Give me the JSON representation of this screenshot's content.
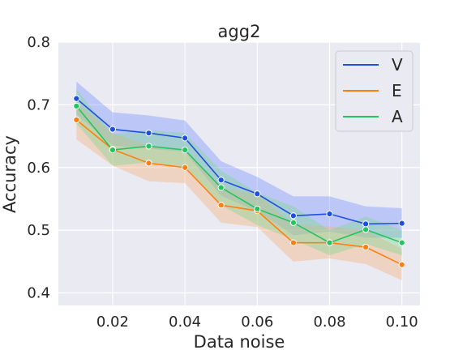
{
  "chart_data": {
    "type": "line",
    "title": "agg2",
    "xlabel": "Data noise",
    "ylabel": "Accuracy",
    "xlim": [
      0.005,
      0.105
    ],
    "ylim": [
      0.38,
      0.8
    ],
    "xticks": [
      0.02,
      0.04,
      0.06,
      0.08,
      0.1
    ],
    "xtick_labels": [
      "0.02",
      "0.04",
      "0.06",
      "0.08",
      "0.10"
    ],
    "yticks": [
      0.4,
      0.5,
      0.6,
      0.7,
      0.8
    ],
    "ytick_labels": [
      "0.4",
      "0.5",
      "0.6",
      "0.7",
      "0.8"
    ],
    "grid": true,
    "legend_position": "top-right",
    "x": [
      0.01,
      0.02,
      0.03,
      0.04,
      0.05,
      0.06,
      0.07,
      0.08,
      0.09,
      0.1
    ],
    "series": [
      {
        "name": "V",
        "color": "#1f4fe0",
        "band_color": "#7b93ff",
        "values": [
          0.71,
          0.661,
          0.655,
          0.647,
          0.58,
          0.558,
          0.523,
          0.526,
          0.51,
          0.511
        ],
        "ci_lower": [
          0.685,
          0.635,
          0.63,
          0.625,
          0.555,
          0.53,
          0.492,
          0.498,
          0.488,
          0.488
        ],
        "ci_upper": [
          0.737,
          0.688,
          0.683,
          0.675,
          0.61,
          0.585,
          0.554,
          0.554,
          0.538,
          0.535
        ]
      },
      {
        "name": "E",
        "color": "#ff7f0e",
        "band_color": "#f6b27a",
        "values": [
          0.676,
          0.629,
          0.607,
          0.6,
          0.54,
          0.531,
          0.48,
          0.48,
          0.473,
          0.445
        ],
        "ci_lower": [
          0.645,
          0.603,
          0.578,
          0.575,
          0.512,
          0.505,
          0.45,
          0.455,
          0.446,
          0.42
        ],
        "ci_upper": [
          0.705,
          0.655,
          0.635,
          0.627,
          0.568,
          0.557,
          0.51,
          0.506,
          0.5,
          0.47
        ]
      },
      {
        "name": "A",
        "color": "#22c55e",
        "band_color": "#7fd88f",
        "values": [
          0.698,
          0.628,
          0.634,
          0.628,
          0.568,
          0.534,
          0.512,
          0.48,
          0.501,
          0.48
        ],
        "ci_lower": [
          0.67,
          0.603,
          0.608,
          0.602,
          0.54,
          0.508,
          0.485,
          0.46,
          0.478,
          0.46
        ],
        "ci_upper": [
          0.725,
          0.653,
          0.66,
          0.655,
          0.595,
          0.56,
          0.538,
          0.5,
          0.522,
          0.5
        ]
      }
    ]
  }
}
